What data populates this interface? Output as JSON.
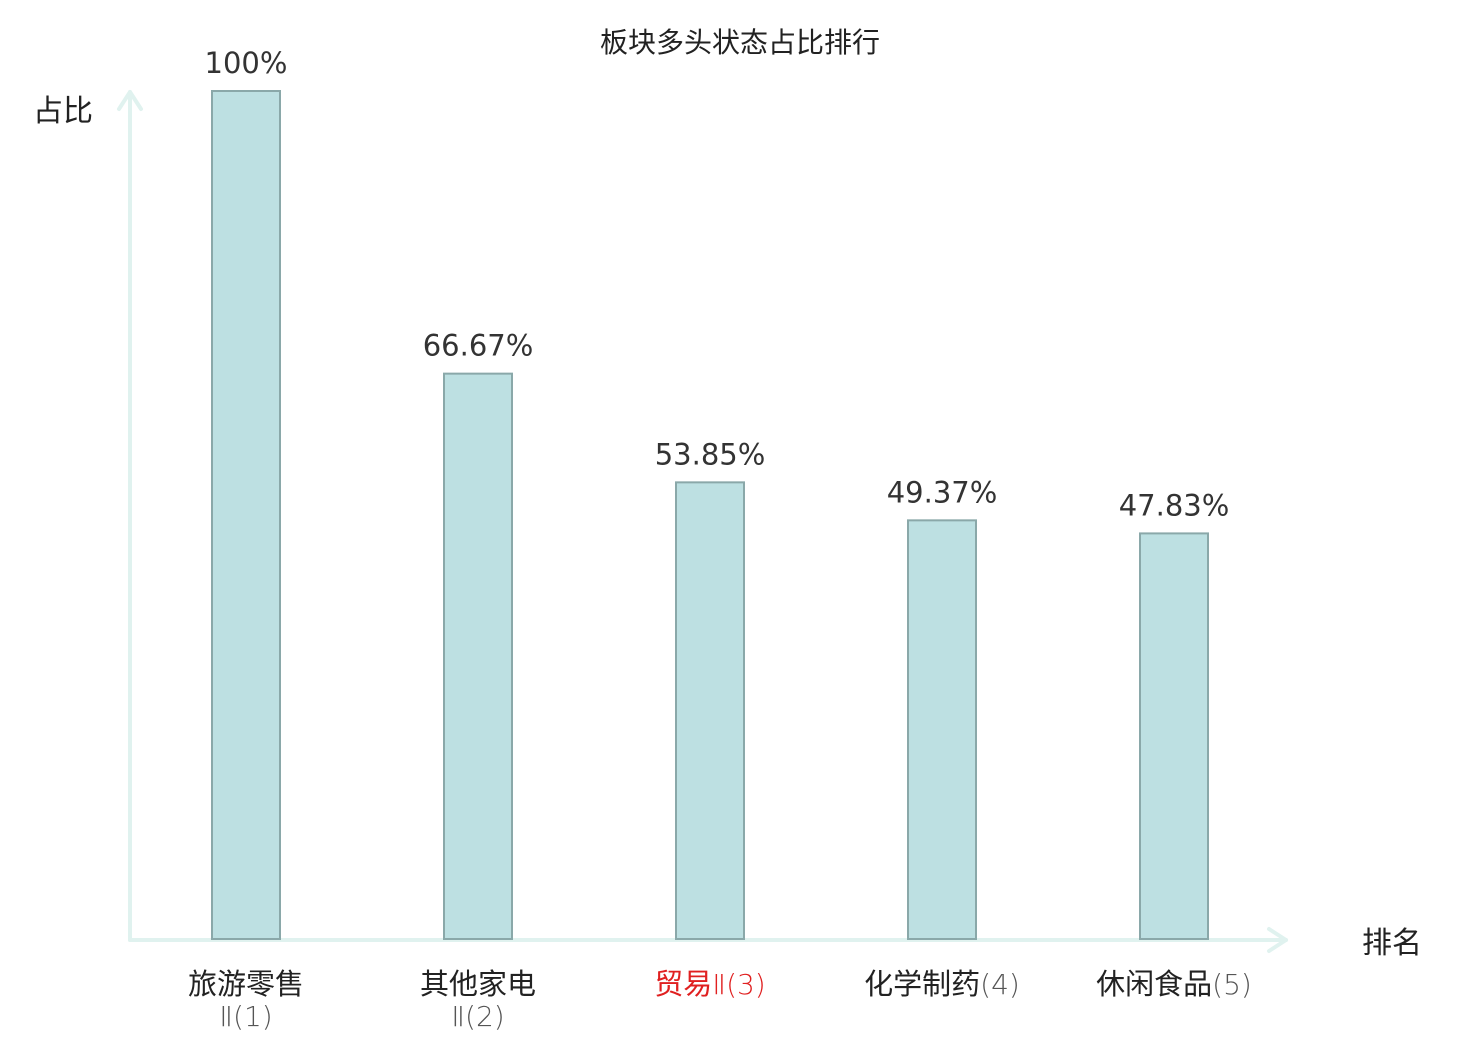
{
  "chart_data": {
    "type": "bar",
    "title": "板块多头状态占比排行",
    "ylabel": "占比",
    "xlabel": "排名",
    "ylim": [
      0,
      100
    ],
    "grid": false,
    "legend": "none",
    "categories": [
      {
        "name": "旅游零售",
        "rank": "Ⅱ(1)",
        "highlight": false
      },
      {
        "name": "其他家电",
        "rank": "Ⅱ(2)",
        "highlight": false
      },
      {
        "name": "贸易",
        "rank": "Ⅱ(3)",
        "highlight": true
      },
      {
        "name": "化学制药",
        "rank": "(4)",
        "highlight": false
      },
      {
        "name": "休闲食品",
        "rank": "(5)",
        "highlight": false
      }
    ],
    "values": [
      100,
      66.67,
      53.85,
      49.37,
      47.83
    ],
    "value_labels": [
      "100%",
      "66.67%",
      "53.85%",
      "49.37%",
      "47.83%"
    ],
    "colors": {
      "bar_fill": "#bde0e2",
      "bar_stroke": "#8aa8a9",
      "axis": "#e0f2ef",
      "text": "#222222",
      "rank_text": "#555555",
      "highlight": "#e02020"
    }
  }
}
